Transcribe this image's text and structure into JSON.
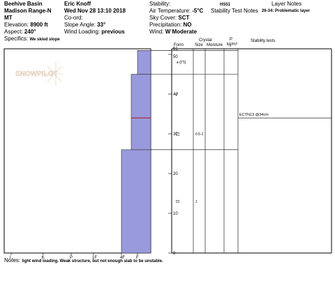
{
  "header": {
    "col1": {
      "location": "Beehive Basin",
      "range": "Madison Range-N",
      "state": "MT",
      "elevation_label": "Elevation:",
      "elevation_value": "8900 ft",
      "aspect_label": "Aspect:",
      "aspect_value": "240°",
      "specifics_label": "Specifics:",
      "specifics_value": "We skied slope"
    },
    "col2": {
      "observer": "Eric Knoff",
      "datetime": "Wed Nov 28 13:10 2018",
      "coord_label": "Co-ord:",
      "slope_label": "Slope Angle:",
      "slope_value": "33°",
      "wind_loading_label": "Wind Loading:",
      "wind_loading_value": "previous"
    },
    "col3": {
      "stability_label": "Stability:",
      "air_temp_label": "Air Temperature:",
      "air_temp_value": "-5°C",
      "sky_label": "Sky Cover:",
      "sky_value": "SCT",
      "precip_label": "Precipitation:",
      "precip_value": "NO",
      "wind_label": "Wind:",
      "wind_value": "W Moderate"
    },
    "col4": {
      "hs_code": "HS51",
      "stability_notes_label": "Stability Test Notes"
    },
    "col5": {
      "layer_notes_label": "Layer Notes",
      "layer_note": "26-34: Problematic layer"
    }
  },
  "table_headers": {
    "form": "Form",
    "crystal": "Crystal",
    "size": "Size",
    "moisture": "Moisture",
    "p": "P",
    "density": "kg/m³",
    "stability_tests": "Stability tests"
  },
  "hardness_axis": {
    "ticks": [
      "I",
      "K",
      "P",
      "1F",
      "4F",
      "F"
    ],
    "tick_positions": [
      0.0,
      0.229,
      0.43,
      0.59,
      0.79,
      0.905
    ]
  },
  "height_axis": {
    "max": 51,
    "labels": [
      "51",
      "50",
      "40",
      "30",
      "20",
      "10",
      "0"
    ],
    "values": [
      51,
      50,
      40,
      30,
      20,
      10,
      0
    ]
  },
  "layers": [
    {
      "bottom": 0,
      "top": 26,
      "hardness_fraction": 0.79
    },
    {
      "bottom": 26,
      "top": 45,
      "hardness_fraction": 0.86
    },
    {
      "bottom": 45,
      "top": 51,
      "hardness_fraction": 0.905
    }
  ],
  "problem_layer_height": 34,
  "layer_rows": [
    {
      "height": 48,
      "form": "+(⨅)",
      "size": "",
      "moisture": ""
    },
    {
      "height": 40,
      "form": "/",
      "size": "",
      "moisture": ""
    },
    {
      "height": 30,
      "form": "□",
      "size": "0.5-1",
      "moisture": ""
    },
    {
      "height": 13,
      "form": "⊡",
      "size": "1",
      "moisture": ""
    }
  ],
  "stability_test": {
    "label": "ECTN13 @34cm",
    "height": 34
  },
  "watermark_text": "SNOWPILOT",
  "notes": {
    "label": "Notes:",
    "text": "light wind loading. Weak structure, but not enough slab to be unstable."
  },
  "colors": {
    "layer_fill": "#9999dd",
    "problem_line": "#aa2222",
    "grid": "#000000"
  }
}
